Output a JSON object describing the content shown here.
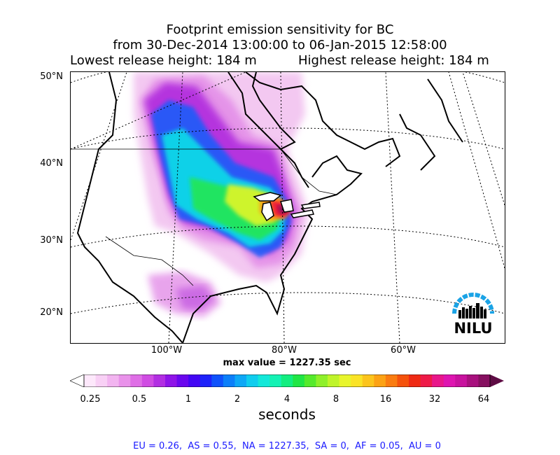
{
  "title": {
    "line1": "Footprint emission sensitivity for BC",
    "line2": "from 30-Dec-2014 13:00:00 to 06-Jan-2015 12:58:00",
    "lowest": "Lowest release height: 184 m",
    "highest": "Highest release height: 184 m"
  },
  "map": {
    "lat_labels": [
      "50°N",
      "40°N",
      "30°N",
      "20°N"
    ],
    "lon_labels": [
      "100°W",
      "80°W",
      "60°W"
    ],
    "max_value": "max value = 1227.35 sec",
    "logo_text": "NILU",
    "logo_color": "#1aa3e6"
  },
  "colorbar": {
    "ticks": [
      "0.25",
      "0.5",
      "1",
      "2",
      "4",
      "8",
      "16",
      "32",
      "64"
    ],
    "label": "seconds",
    "colors": [
      "#ffffff",
      "#fde8fb",
      "#f8d0f5",
      "#f2b4f0",
      "#e992ea",
      "#df6ee6",
      "#d04ce3",
      "#b22ee2",
      "#8f14e8",
      "#6a07ee",
      "#4306f4",
      "#1e22fa",
      "#0f52fb",
      "#0c7ff9",
      "#0ea8f6",
      "#10cdee",
      "#13e8d9",
      "#14f2b4",
      "#12ee80",
      "#20e645",
      "#55ea2c",
      "#8ef02a",
      "#bff42a",
      "#e8f52c",
      "#fae326",
      "#fcc41c",
      "#fca214",
      "#fa7c10",
      "#f5520c",
      "#ef2a14",
      "#ee1a48",
      "#e8178a",
      "#de15b0",
      "#c8129e",
      "#a8107e",
      "#861060",
      "#5e0c44"
    ]
  },
  "summary": "EU = 0.26,  AS = 0.55,  NA = 1227.35,  SA = 0,  AF = 0.05,  AU = 0"
}
